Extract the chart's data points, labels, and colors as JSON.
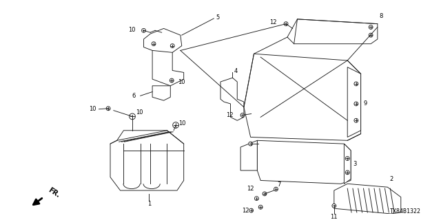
{
  "diagram_code": "TX84B1322",
  "background_color": "#ffffff",
  "line_color": "#1a1a1a",
  "text_color": "#000000",
  "figsize": [
    6.4,
    3.2
  ],
  "dpi": 100,
  "lw": 0.65
}
